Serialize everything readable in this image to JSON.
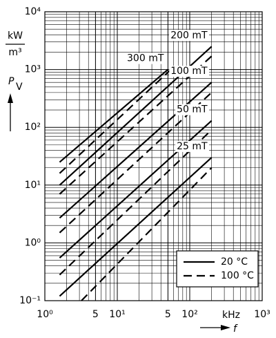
{
  "chart_data": {
    "type": "line",
    "log_x": true,
    "log_y": true,
    "grid": true,
    "minor_grid": true,
    "xlim": [
      1,
      1000
    ],
    "ylim": [
      0.1,
      10000
    ],
    "xticks": [
      {
        "value": 1,
        "label": "10⁰"
      },
      5,
      {
        "value": 10,
        "label": "10¹"
      },
      {
        "value": 50,
        "label": "5"
      },
      {
        "value": 100,
        "label": "10²"
      },
      {
        "value": 1000,
        "label": "10³"
      }
    ],
    "yticks": [
      {
        "value": 0.1,
        "label": "10⁻¹"
      },
      {
        "value": 1,
        "label": "10⁰"
      },
      {
        "value": 10,
        "label": "10¹"
      },
      {
        "value": 100,
        "label": "10²"
      },
      {
        "value": 1000,
        "label": "10³"
      },
      {
        "value": 10000,
        "label": "10⁴"
      }
    ],
    "x_unit": "kHz",
    "xlabel": "f",
    "y_unit": {
      "numerator": "kW",
      "denominator": "m³"
    },
    "ylabel": {
      "symbol": "P",
      "subscript": "V"
    },
    "color": "#000000",
    "legend_position": "lower right",
    "legend": [
      {
        "label": "20 °C",
        "dashed": false
      },
      {
        "label": "100 °C",
        "dashed": true
      }
    ],
    "series": [
      {
        "name": "300 mT",
        "style": 0,
        "x": [
          1.6,
          50
        ],
        "values": [
          25,
          1000
        ]
      },
      {
        "style": 1,
        "x": [
          1.6,
          55
        ],
        "values": [
          16,
          1000
        ]
      },
      {
        "name": "200 mT",
        "style": 0,
        "x": [
          1.6,
          200
        ],
        "values": [
          10,
          2500
        ]
      },
      {
        "style": 1,
        "x": [
          1.6,
          200
        ],
        "values": [
          7,
          1700
        ]
      },
      {
        "name": "100 mT",
        "style": 0,
        "x": [
          1.6,
          200
        ],
        "values": [
          2.7,
          600
        ]
      },
      {
        "style": 1,
        "x": [
          1.6,
          200
        ],
        "values": [
          1.5,
          400
        ]
      },
      {
        "name": "50 mT",
        "style": 0,
        "x": [
          1.6,
          200
        ],
        "values": [
          0.55,
          130
        ]
      },
      {
        "style": 1,
        "x": [
          1.6,
          200
        ],
        "values": [
          0.28,
          90
        ]
      },
      {
        "name": "25 mT",
        "style": 0,
        "x": [
          1.6,
          200
        ],
        "values": [
          0.12,
          30
        ]
      },
      {
        "style": 1,
        "x": [
          3.2,
          200
        ],
        "values": [
          0.1,
          20
        ]
      }
    ]
  }
}
